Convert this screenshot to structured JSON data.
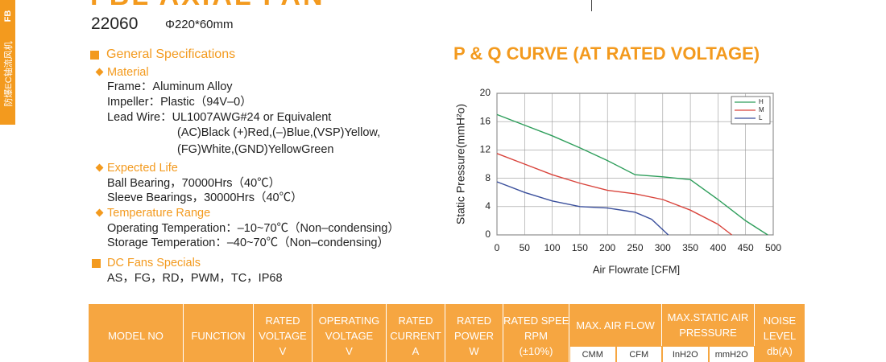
{
  "side_tab": {
    "series": "FB",
    "label": "防爆EC轴流风机"
  },
  "header": {
    "title": "FBL AXIAL FAN",
    "model": "22060",
    "size": "Φ220*60mm"
  },
  "specs": {
    "heading": "General Specifications",
    "material": {
      "title": "Material",
      "lines": [
        "Frame：Aluminum Alloy",
        "Impeller：Plastic（94V–0）",
        "Lead Wire：UL1007AWG#24 or Equivalent",
        "(AC)Black (+)Red,(–)Blue,(VSP)Yellow,",
        "(FG)White,(GND)YellowGreen"
      ]
    },
    "life": {
      "title": "Expected Life",
      "lines": [
        "Ball Bearing，70000Hrs（40℃）",
        "Sleeve Bearings，30000Hrs（40℃）"
      ]
    },
    "temperature": {
      "title": "Temperature Range",
      "lines": [
        "Operating Temperation：–10~70℃（Non–condensing）",
        "Storage Temperation：–40~70℃（Non–condensing）"
      ]
    },
    "specials": {
      "title": "DC Fans Specials",
      "lines": [
        "AS，FG，RD，PWM，TC，IP68"
      ]
    }
  },
  "chart_data": {
    "type": "line",
    "title": "P & Q CURVE (AT RATED VOLTAGE)",
    "x_label": "Air Flowrate  [CFM]",
    "y_label": "Static Pressure(mmH²o)",
    "xlim": [
      0,
      500
    ],
    "xticks": [
      0,
      50,
      100,
      150,
      200,
      250,
      300,
      350,
      400,
      450,
      500
    ],
    "ylim": [
      0,
      20
    ],
    "yticks": [
      0,
      4,
      8,
      12,
      16,
      20
    ],
    "grid": true,
    "legend": "top-right",
    "series": [
      {
        "name": "H",
        "color": "#2e9e5b",
        "x": [
          0,
          50,
          100,
          150,
          200,
          250,
          300,
          350,
          400,
          450,
          490
        ],
        "values": [
          17,
          15.5,
          14,
          12.3,
          10.5,
          8.5,
          8.2,
          7.8,
          5,
          2,
          0
        ]
      },
      {
        "name": "M",
        "color": "#d9443c",
        "x": [
          0,
          50,
          100,
          150,
          200,
          250,
          300,
          350,
          400,
          425
        ],
        "values": [
          11.5,
          10,
          8.5,
          7.3,
          6.3,
          5.8,
          5,
          3.5,
          1.5,
          0
        ]
      },
      {
        "name": "L",
        "color": "#3a4f9c",
        "x": [
          0,
          50,
          100,
          150,
          200,
          250,
          280,
          310
        ],
        "values": [
          7.5,
          6,
          4.8,
          4,
          3.8,
          3.2,
          2.2,
          0
        ]
      }
    ]
  },
  "table": {
    "columns": [
      {
        "lines": [
          "MODEL NO"
        ]
      },
      {
        "lines": [
          "FUNCTION"
        ]
      },
      {
        "lines": [
          "RATED",
          "VOLTAGE",
          "V"
        ]
      },
      {
        "lines": [
          "OPERATING",
          "VOLTAGE",
          "V"
        ]
      },
      {
        "lines": [
          "RATED",
          "CURRENT",
          "A"
        ]
      },
      {
        "lines": [
          "RATED",
          "POWER",
          "W"
        ]
      },
      {
        "lines": [
          "RATED SPEED",
          "RPM",
          "(±10%)"
        ]
      },
      {
        "lines": [
          "MAX. AIR FLOW"
        ],
        "sub": [
          "CMM",
          "CFM"
        ]
      },
      {
        "lines": [
          "MAX.STATIC AIR",
          "PRESSURE"
        ],
        "sub": [
          "InH2O",
          "mmH2O"
        ]
      },
      {
        "lines": [
          "NOISE",
          "LEVEL",
          "db(A)"
        ]
      }
    ]
  }
}
